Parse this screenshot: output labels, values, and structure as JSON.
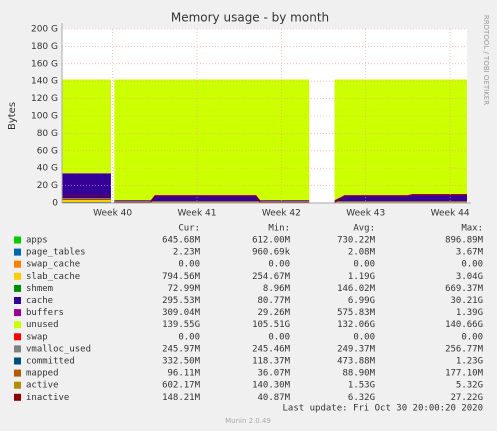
{
  "chart_data": {
    "type": "stacked-area",
    "title": "Memory usage - by month",
    "y_label": "Bytes",
    "side_note": "RRDTOOL / TOBI OETIKER",
    "footer": "Last update: Fri Oct 30 20:00:20 2020",
    "version": "Munin 2.0.49",
    "legend_columns": [
      "Cur:",
      "Min:",
      "Avg:",
      "Max:"
    ],
    "ylim": [
      0,
      200
    ],
    "yticks": [
      {
        "value": 0,
        "label": "0"
      },
      {
        "value": 20,
        "label": "20 G"
      },
      {
        "value": 40,
        "label": "40 G"
      },
      {
        "value": 60,
        "label": "60 G"
      },
      {
        "value": 80,
        "label": "80 G"
      },
      {
        "value": 100,
        "label": "100 G"
      },
      {
        "value": 120,
        "label": "120 G"
      },
      {
        "value": 140,
        "label": "140 G"
      },
      {
        "value": 160,
        "label": "160 G"
      },
      {
        "value": 180,
        "label": "180 G"
      },
      {
        "value": 200,
        "label": "200 G"
      }
    ],
    "xlim": [
      39.4,
      44.2
    ],
    "xticks": [
      {
        "value": 40,
        "label": "Week 40"
      },
      {
        "value": 41,
        "label": "Week 41"
      },
      {
        "value": 42,
        "label": "Week 42"
      },
      {
        "value": 43,
        "label": "Week 43"
      },
      {
        "value": 44,
        "label": "Week 44"
      }
    ],
    "grid": true,
    "x": [
      39.4,
      39.98,
      40.0,
      40.02,
      40.45,
      40.5,
      41.7,
      41.75,
      42.33,
      42.45,
      42.63,
      42.75,
      43.5,
      43.55,
      44.2
    ],
    "series": [
      {
        "name": "apps",
        "kind": "area",
        "color": "#00cc00",
        "values": [
          0.7,
          0.7,
          null,
          0.7,
          0.7,
          0.7,
          0.7,
          0.7,
          0.7,
          null,
          0.7,
          0.7,
          0.7,
          0.7,
          0.7
        ],
        "legend_values": [
          "645.68M",
          "612.00M",
          "730.22M",
          "896.89M"
        ]
      },
      {
        "name": "page_tables",
        "kind": "area",
        "color": "#0066b3",
        "values": [
          0.002,
          0.002,
          null,
          0.002,
          0.002,
          0.002,
          0.002,
          0.002,
          0.002,
          null,
          0.002,
          0.002,
          0.002,
          0.002,
          0.002
        ],
        "legend_values": [
          "2.23M",
          "960.69k",
          "2.08M",
          "3.67M"
        ]
      },
      {
        "name": "swap_cache",
        "kind": "area",
        "color": "#ff8000",
        "values": [
          0,
          0,
          null,
          0,
          0,
          0,
          0,
          0,
          0,
          null,
          0,
          0,
          0,
          0,
          0
        ],
        "legend_values": [
          "0.00",
          "0.00",
          "0.00",
          "0.00"
        ]
      },
      {
        "name": "slab_cache",
        "kind": "area",
        "color": "#ffcc00",
        "values": [
          3,
          3,
          null,
          1,
          1,
          1,
          1,
          1,
          1,
          null,
          1,
          1,
          1,
          1,
          1
        ],
        "legend_values": [
          "794.56M",
          "254.67M",
          "1.19G",
          "3.04G"
        ]
      },
      {
        "name": "shmem",
        "kind": "area",
        "color": "#008f00",
        "values": [
          0.1,
          0.1,
          null,
          0.1,
          0.1,
          0.1,
          0.1,
          0.1,
          0.1,
          null,
          0.1,
          0.1,
          0.1,
          0.1,
          0.1
        ],
        "legend_values": [
          "72.99M",
          "8.96M",
          "146.02M",
          "669.37M"
        ]
      },
      {
        "name": "cache",
        "kind": "area",
        "color": "#330099",
        "values": [
          30,
          30,
          null,
          1,
          1,
          7,
          7,
          1,
          1,
          null,
          1,
          7,
          7,
          8,
          8
        ],
        "legend_values": [
          "295.53M",
          "80.77M",
          "6.99G",
          "30.21G"
        ]
      },
      {
        "name": "buffers",
        "kind": "area",
        "color": "#990099",
        "values": [
          0.5,
          0.5,
          null,
          0.5,
          0.5,
          0.5,
          0.5,
          0.5,
          0.5,
          null,
          0.5,
          0.5,
          0.5,
          0.5,
          0.5
        ],
        "legend_values": [
          "309.04M",
          "29.26M",
          "575.83M",
          "1.39G"
        ]
      },
      {
        "name": "unused",
        "kind": "area",
        "color": "#ccff00",
        "values": [
          107.7,
          107.7,
          null,
          138.7,
          138.7,
          132.7,
          132.7,
          138.7,
          138.7,
          null,
          138.7,
          132.7,
          132.7,
          131.7,
          131.7
        ],
        "legend_values": [
          "139.55G",
          "105.51G",
          "132.06G",
          "140.66G"
        ]
      },
      {
        "name": "swap",
        "kind": "area",
        "color": "#ff0000",
        "values": [
          0,
          0,
          null,
          0,
          0,
          0,
          0,
          0,
          0,
          null,
          0,
          0,
          0,
          0,
          0
        ],
        "legend_values": [
          "0.00",
          "0.00",
          "0.00",
          "0.00"
        ]
      },
      {
        "name": "vmalloc_used",
        "kind": "line",
        "color": "#808080",
        "values": [
          0.25,
          0.25,
          null,
          0.25,
          0.25,
          0.25,
          0.25,
          0.25,
          0.25,
          null,
          0.25,
          0.25,
          0.25,
          0.25,
          0.25
        ],
        "legend_values": [
          "245.97M",
          "245.46M",
          "249.37M",
          "256.77M"
        ]
      },
      {
        "name": "committed",
        "kind": "line",
        "color": "#004d80",
        "values": [
          0.4,
          0.4,
          null,
          0.4,
          0.4,
          0.4,
          0.4,
          0.4,
          0.4,
          null,
          0.4,
          0.4,
          0.4,
          0.4,
          0.4
        ],
        "legend_values": [
          "332.50M",
          "118.37M",
          "473.88M",
          "1.23G"
        ]
      },
      {
        "name": "mapped",
        "kind": "line",
        "color": "#b35a00",
        "values": [
          0.1,
          0.1,
          null,
          0.1,
          0.1,
          0.1,
          0.1,
          0.1,
          0.1,
          null,
          0.1,
          0.1,
          0.1,
          0.1,
          0.1
        ],
        "legend_values": [
          "96.11M",
          "36.07M",
          "88.90M",
          "177.10M"
        ]
      },
      {
        "name": "active",
        "kind": "line",
        "color": "#b38f00",
        "values": [
          5,
          5,
          null,
          1,
          1,
          1,
          1,
          1,
          1,
          null,
          1,
          1,
          1,
          1,
          1
        ],
        "legend_values": [
          "602.17M",
          "140.30M",
          "1.53G",
          "5.32G"
        ]
      },
      {
        "name": "inactive",
        "kind": "line",
        "color": "#8f0000",
        "values": [
          8,
          8,
          null,
          0.5,
          0.5,
          8,
          8,
          0.5,
          0.5,
          null,
          0.5,
          8,
          8,
          9,
          9
        ],
        "legend_values": [
          "148.21M",
          "40.87M",
          "6.32G",
          "27.22G"
        ]
      }
    ]
  }
}
